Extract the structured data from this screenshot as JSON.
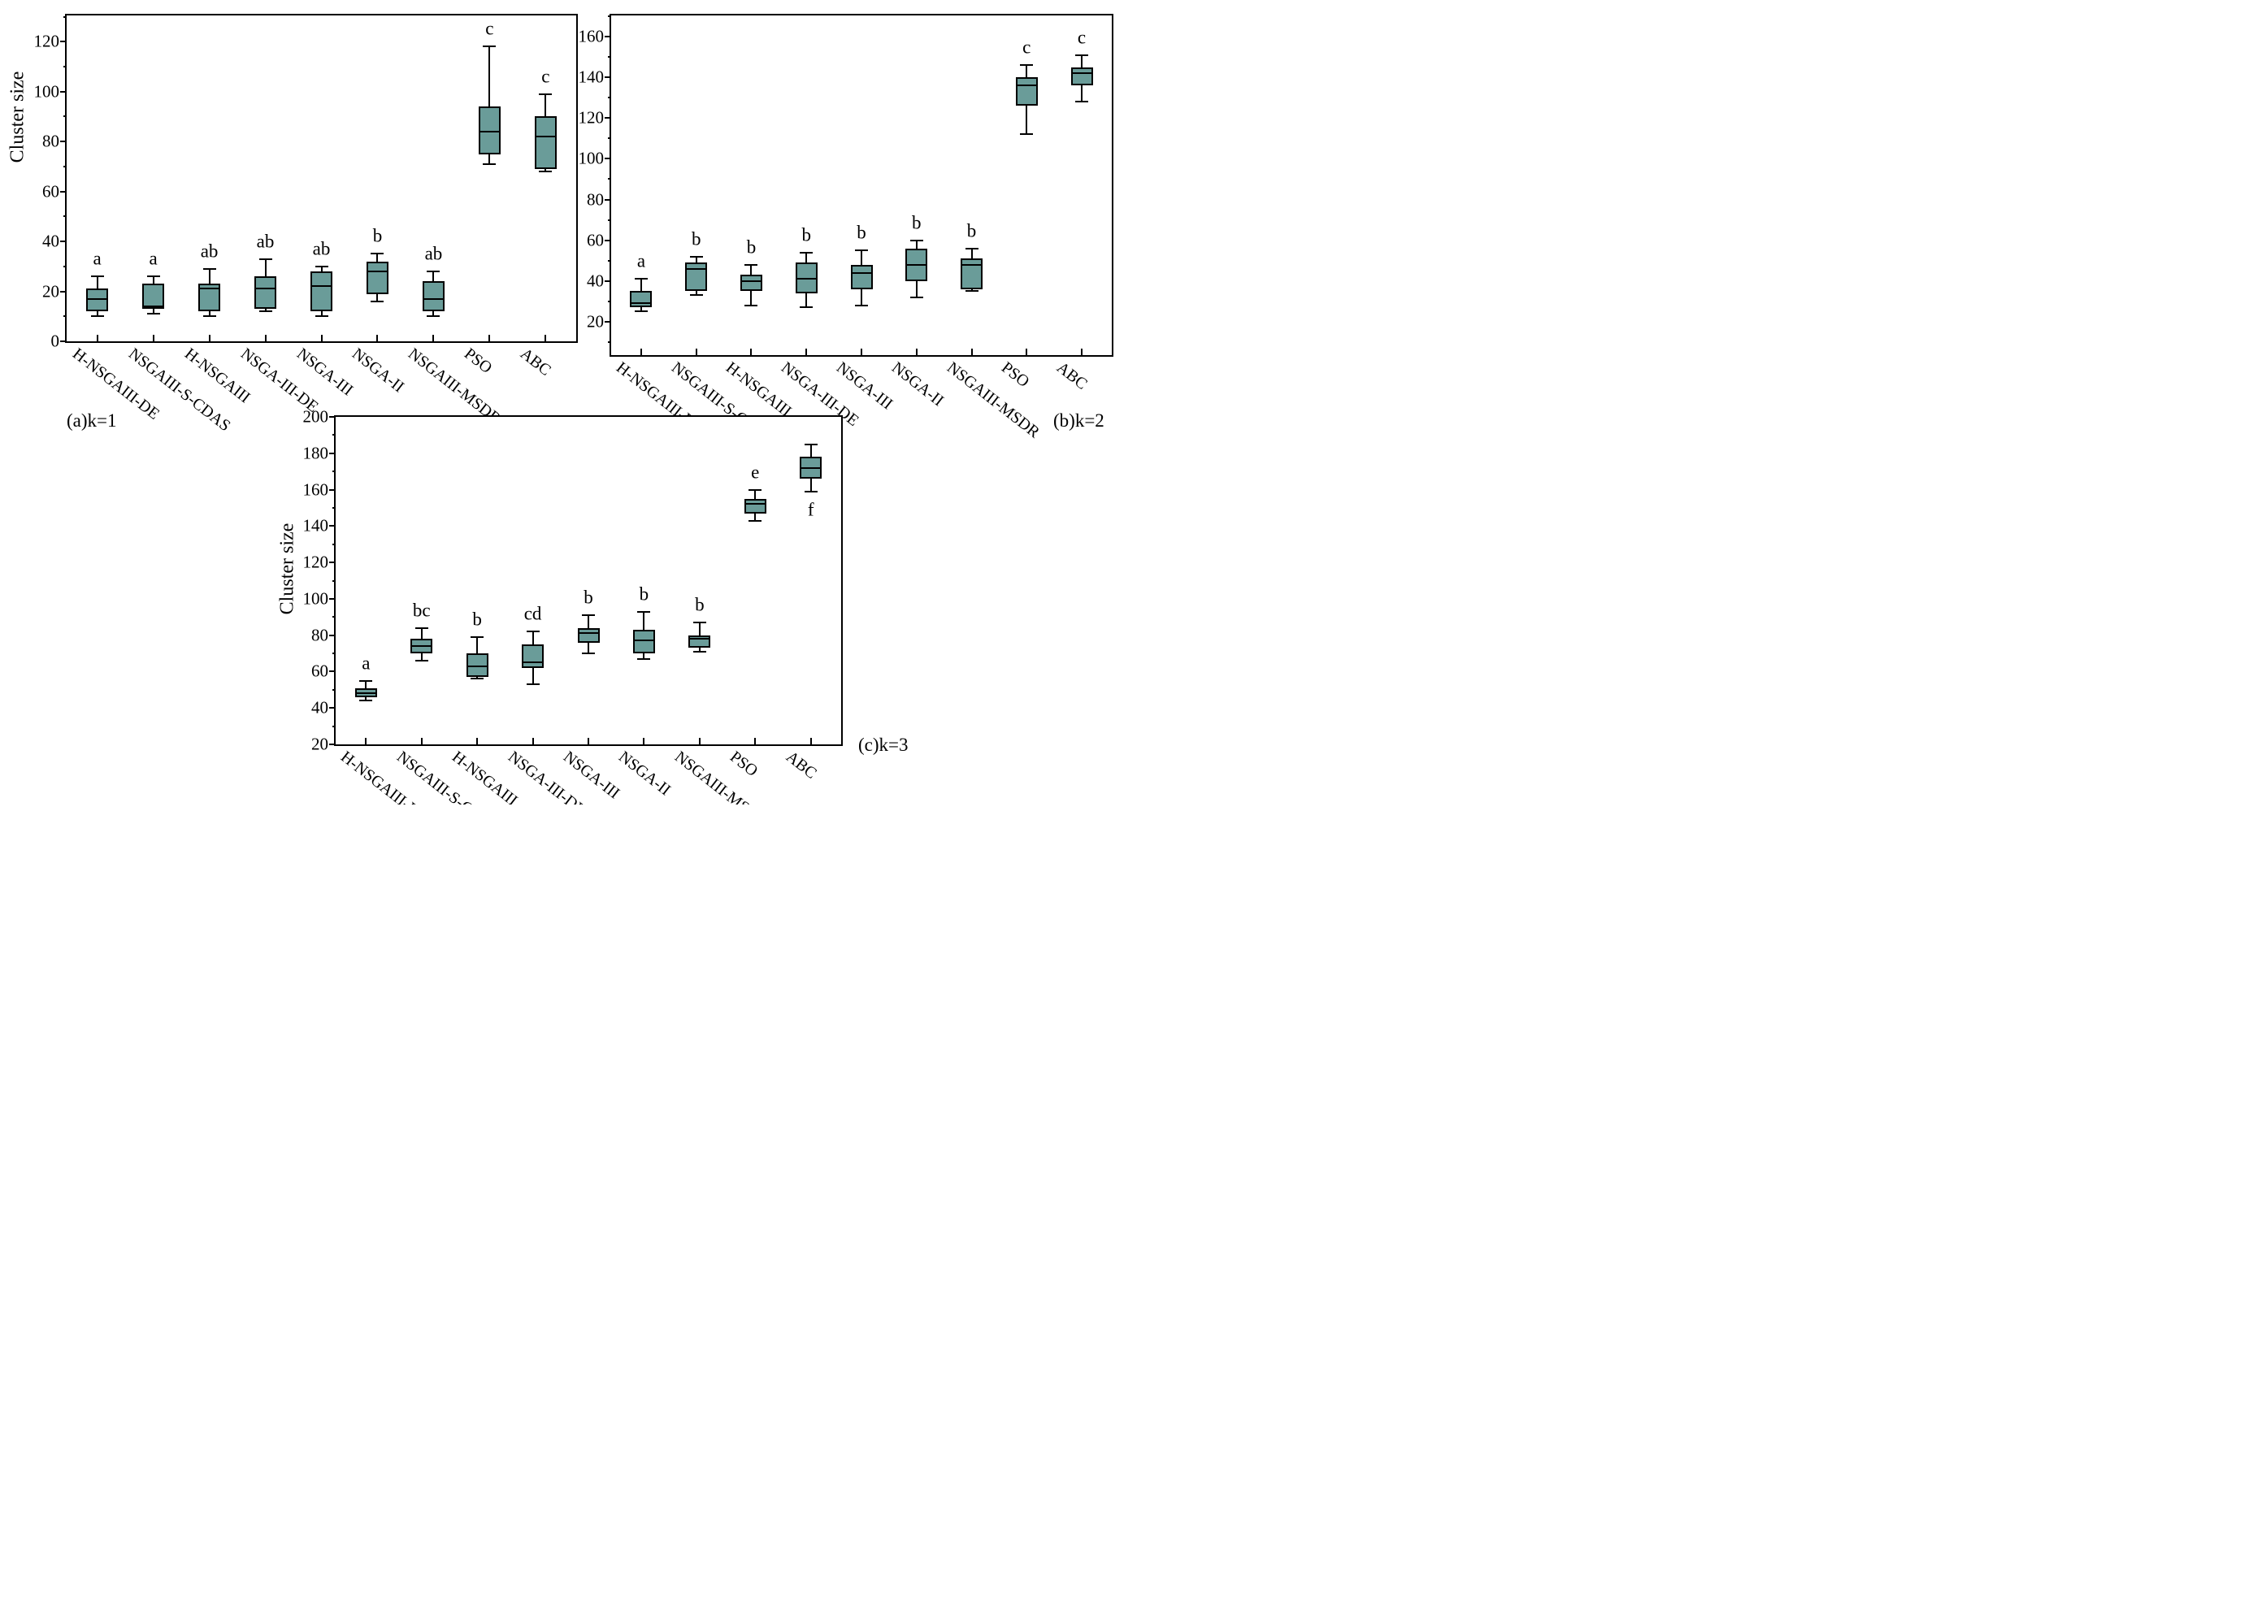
{
  "figure": {
    "ylabel": "Cluster size",
    "box_fill": "#6a9c99",
    "line_color": "#000000",
    "background": "#ffffff"
  },
  "captions": {
    "a": "(a)k=1",
    "b": "(b)k=2",
    "c": "(c)k=3"
  },
  "categories": [
    "H-NSGAIII-DE",
    "NSGAIII-S-CDAS",
    "H-NSGAIII",
    "NSGA-III-DE",
    "NSGA-III",
    "NSGA-II",
    "NSGAIII-MSDR",
    "PSO",
    "ABC"
  ],
  "chart_data": [
    {
      "id": "a",
      "type": "box",
      "title": "(a)k=1",
      "ylabel": "Cluster size",
      "ylim": [
        0,
        130.5
      ],
      "yticks": [
        0,
        20,
        40,
        60,
        80,
        100,
        120
      ],
      "minor_step": 10,
      "grid": false,
      "series": [
        {
          "name": "H-NSGAIII-DE",
          "letter": "a",
          "letter_pos": "above",
          "whislo": 10,
          "q1": 12,
          "med": 17,
          "q3": 21,
          "whishi": 26
        },
        {
          "name": "NSGAIII-S-CDAS",
          "letter": "a",
          "letter_pos": "above",
          "whislo": 11,
          "q1": 13,
          "med": 14,
          "q3": 23,
          "whishi": 26
        },
        {
          "name": "H-NSGAIII",
          "letter": "ab",
          "letter_pos": "above",
          "whislo": 10,
          "q1": 12,
          "med": 21,
          "q3": 23,
          "whishi": 29
        },
        {
          "name": "NSGA-III-DE",
          "letter": "ab",
          "letter_pos": "above",
          "whislo": 12,
          "q1": 13,
          "med": 21,
          "q3": 26,
          "whishi": 33
        },
        {
          "name": "NSGA-III",
          "letter": "ab",
          "letter_pos": "above",
          "whislo": 10,
          "q1": 12,
          "med": 22,
          "q3": 28,
          "whishi": 30
        },
        {
          "name": "NSGA-II",
          "letter": "b",
          "letter_pos": "above",
          "whislo": 16,
          "q1": 19,
          "med": 28,
          "q3": 32,
          "whishi": 35
        },
        {
          "name": "NSGAIII-MSDR",
          "letter": "ab",
          "letter_pos": "above",
          "whislo": 10,
          "q1": 12,
          "med": 17,
          "q3": 24,
          "whishi": 28
        },
        {
          "name": "PSO",
          "letter": "c",
          "letter_pos": "above",
          "whislo": 71,
          "q1": 75,
          "med": 84,
          "q3": 94,
          "whishi": 118
        },
        {
          "name": "ABC",
          "letter": "c",
          "letter_pos": "above",
          "whislo": 68,
          "q1": 69,
          "med": 82,
          "q3": 90,
          "whishi": 99
        }
      ]
    },
    {
      "id": "b",
      "type": "box",
      "title": "(b)k=2",
      "ylabel": "",
      "ylim": [
        3.5,
        170.5
      ],
      "yticks": [
        20,
        40,
        60,
        80,
        100,
        120,
        140,
        160
      ],
      "minor_step": 10,
      "grid": false,
      "series": [
        {
          "name": "H-NSGAIII-DE",
          "letter": "a",
          "letter_pos": "above",
          "whislo": 25,
          "q1": 27,
          "med": 29,
          "q3": 35,
          "whishi": 41
        },
        {
          "name": "NSGAIII-S-CDAS",
          "letter": "b",
          "letter_pos": "above",
          "whislo": 33,
          "q1": 35,
          "med": 46,
          "q3": 49,
          "whishi": 52
        },
        {
          "name": "H-NSGAIII",
          "letter": "b",
          "letter_pos": "above",
          "whislo": 28,
          "q1": 35,
          "med": 40,
          "q3": 43,
          "whishi": 48
        },
        {
          "name": "NSGA-III-DE",
          "letter": "b",
          "letter_pos": "above",
          "whislo": 27,
          "q1": 34,
          "med": 41,
          "q3": 49,
          "whishi": 54
        },
        {
          "name": "NSGA-III",
          "letter": "b",
          "letter_pos": "above",
          "whislo": 28,
          "q1": 36,
          "med": 44,
          "q3": 48,
          "whishi": 55
        },
        {
          "name": "NSGA-II",
          "letter": "b",
          "letter_pos": "above",
          "whislo": 32,
          "q1": 40,
          "med": 48,
          "q3": 56,
          "whishi": 60
        },
        {
          "name": "NSGAIII-MSDR",
          "letter": "b",
          "letter_pos": "above",
          "whislo": 35,
          "q1": 36,
          "med": 48,
          "q3": 51,
          "whishi": 56
        },
        {
          "name": "PSO",
          "letter": "c",
          "letter_pos": "above",
          "whislo": 112,
          "q1": 126,
          "med": 136,
          "q3": 140,
          "whishi": 146
        },
        {
          "name": "ABC",
          "letter": "c",
          "letter_pos": "above",
          "whislo": 128,
          "q1": 136,
          "med": 142,
          "q3": 145,
          "whishi": 151
        }
      ]
    },
    {
      "id": "c",
      "type": "box",
      "title": "(c)k=3",
      "ylabel": "Cluster size",
      "ylim": [
        20,
        200
      ],
      "yticks": [
        20,
        40,
        60,
        80,
        100,
        120,
        140,
        160,
        180,
        200
      ],
      "minor_step": 10,
      "grid": false,
      "series": [
        {
          "name": "H-NSGAIII-DE",
          "letter": "a",
          "letter_pos": "above",
          "whislo": 44,
          "q1": 46,
          "med": 48,
          "q3": 51,
          "whishi": 55
        },
        {
          "name": "NSGAIII-S-CDAS",
          "letter": "bc",
          "letter_pos": "above",
          "whislo": 66,
          "q1": 70,
          "med": 74,
          "q3": 78,
          "whishi": 84
        },
        {
          "name": "H-NSGAIII",
          "letter": "b",
          "letter_pos": "above",
          "whislo": 56,
          "q1": 57,
          "med": 63,
          "q3": 70,
          "whishi": 79
        },
        {
          "name": "NSGA-III-DE",
          "letter": "cd",
          "letter_pos": "above",
          "whislo": 53,
          "q1": 62,
          "med": 65,
          "q3": 75,
          "whishi": 82
        },
        {
          "name": "NSGA-III",
          "letter": "b",
          "letter_pos": "above",
          "whislo": 70,
          "q1": 76,
          "med": 81,
          "q3": 84,
          "whishi": 91
        },
        {
          "name": "NSGA-II",
          "letter": "b",
          "letter_pos": "above",
          "whislo": 67,
          "q1": 70,
          "med": 77,
          "q3": 83,
          "whishi": 93
        },
        {
          "name": "NSGAIII-MSDR",
          "letter": "b",
          "letter_pos": "above",
          "whislo": 71,
          "q1": 73,
          "med": 78,
          "q3": 80,
          "whishi": 87
        },
        {
          "name": "PSO",
          "letter": "e",
          "letter_pos": "above",
          "whislo": 143,
          "q1": 147,
          "med": 152,
          "q3": 155,
          "whishi": 160
        },
        {
          "name": "ABC",
          "letter": "f",
          "letter_pos": "below",
          "whislo": 159,
          "q1": 166,
          "med": 172,
          "q3": 178,
          "whishi": 185
        }
      ]
    }
  ]
}
